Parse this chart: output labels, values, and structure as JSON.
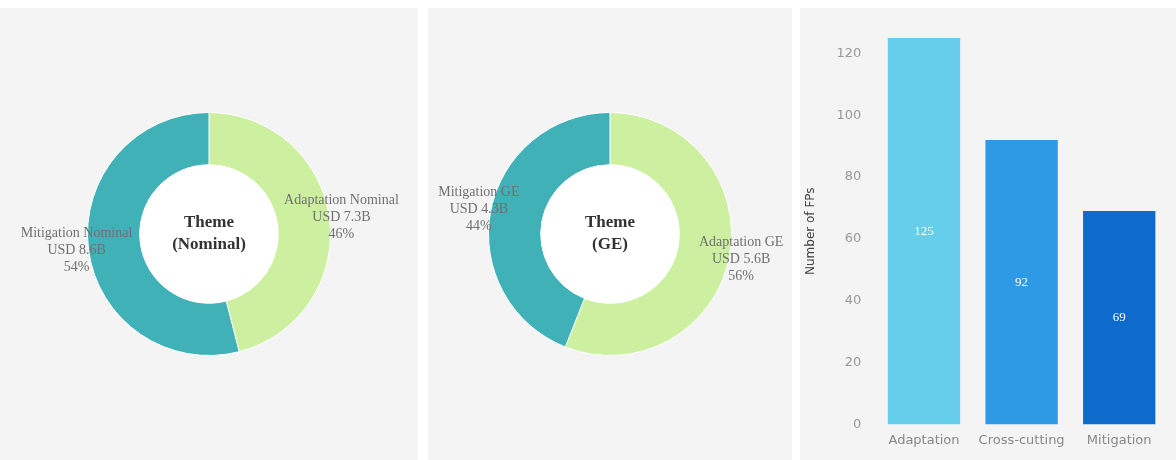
{
  "chart_data": [
    {
      "type": "donut",
      "title": "Theme\n(Nominal)",
      "categories": [
        "Adaptation Nominal",
        "Mitigation Nominal"
      ],
      "values": [
        46,
        54
      ],
      "colors": [
        "#cdf0a0",
        "#3fb1b7"
      ],
      "annotations": [
        "USD 7.3B",
        "USD 8.6B"
      ],
      "value_labels": [
        "46%",
        "54%"
      ]
    },
    {
      "type": "donut",
      "title": "Theme\n(GE)",
      "categories": [
        "Adaptation GE",
        "Mitigation GE"
      ],
      "values": [
        56,
        44
      ],
      "colors": [
        "#cdf0a0",
        "#3fb1b7"
      ],
      "annotations": [
        "USD 5.6B",
        "USD 4.3B"
      ],
      "value_labels": [
        "56%",
        "44%"
      ]
    },
    {
      "type": "bar",
      "ylabel": "Number of FPs",
      "categories": [
        "Adaptation",
        "Cross-cutting",
        "Mitigation"
      ],
      "values": [
        125,
        92,
        69
      ],
      "colors": [
        "#66cdeb",
        "#2e9ae6",
        "#0e6bcb"
      ],
      "ylim": [
        0,
        125
      ],
      "yticks": [
        0,
        20,
        40,
        60,
        80,
        100,
        120
      ],
      "data_labels": true
    }
  ]
}
